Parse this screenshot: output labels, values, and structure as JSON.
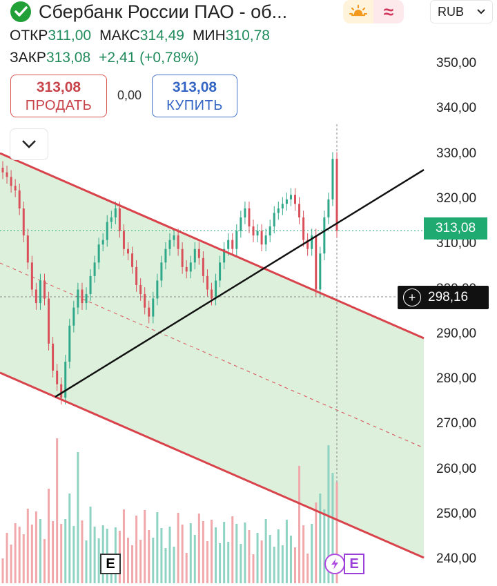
{
  "header": {
    "title": "Сбербанк России ПАО - об...",
    "currency": "RUB",
    "theme_icon": "sun-icon",
    "indicator_icon": "wave-icon"
  },
  "ohlc": {
    "open_label": "ОТКР",
    "open_value": "311,00",
    "high_label": "МАКС",
    "high_value": "314,49",
    "low_label": "МИН",
    "low_value": "310,78",
    "close_label": "ЗАКР",
    "close_value": "313,08",
    "change": "+2,41 (+0,78%)"
  },
  "trade": {
    "sell_price": "313,08",
    "sell_label": "ПРОДАТЬ",
    "spread": "0,00",
    "buy_price": "313,08",
    "buy_label": "КУПИТЬ"
  },
  "price_axis": {
    "ticks": [
      "350,00",
      "340,00",
      "330,00",
      "320,00",
      "310,00",
      "300,00",
      "290,00",
      "280,00",
      "270,00",
      "260,00",
      "250,00",
      "240,00"
    ],
    "last_price_tag": "313,08",
    "crosshair_tag": "298,16"
  },
  "badges": {
    "e1": "E",
    "e2": "E"
  },
  "colors": {
    "up": "#2fa889",
    "down": "#d9505a",
    "channel_fill": "#dcf0dc",
    "channel_line": "#d9434b",
    "last_price": "#1faa72"
  },
  "chart_data": {
    "type": "candlestick",
    "ylim": [
      238,
      356
    ],
    "last_price": 313.08,
    "crosshair_price": 298.16,
    "candles_approx_close": [
      326,
      325,
      323,
      322,
      318,
      312,
      306,
      300,
      297,
      302,
      298,
      288,
      282,
      279,
      276,
      284,
      292,
      296,
      300,
      297,
      299,
      303,
      306,
      310,
      311,
      315,
      316,
      318,
      313,
      309,
      308,
      305,
      301,
      299,
      296,
      294,
      298,
      302,
      306,
      309,
      311,
      312,
      309,
      305,
      304,
      306,
      309,
      307,
      303,
      300,
      298,
      302,
      306,
      309,
      311,
      309,
      313,
      316,
      318,
      314,
      312,
      313,
      310,
      312,
      314,
      317,
      318,
      319,
      320,
      321,
      319,
      316,
      311,
      309,
      312,
      300,
      308,
      316,
      320,
      329,
      313
    ]
  }
}
